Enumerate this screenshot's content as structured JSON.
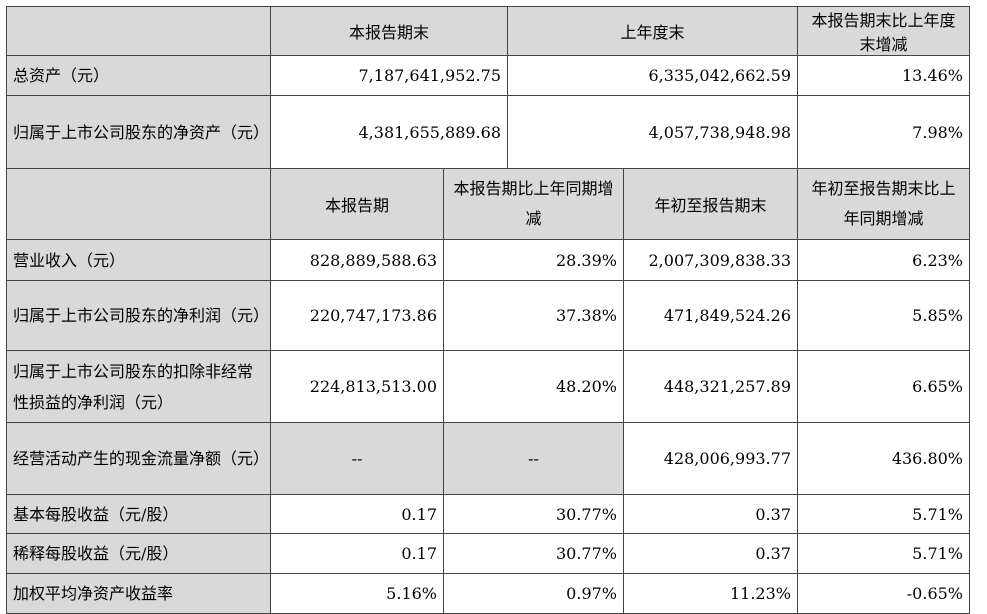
{
  "section1": {
    "headers": [
      "本报告期末",
      "上年度末",
      "本报告期末比上年度末增减"
    ],
    "rows": [
      {
        "label": "总资产（元）",
        "current": "7,187,641,952.75",
        "prior": "6,335,042,662.59",
        "change": "13.46%"
      },
      {
        "label": "归属于上市公司股东的净资产（元）",
        "current": "4,381,655,889.68",
        "prior": "4,057,738,948.98",
        "change": "7.98%"
      }
    ]
  },
  "section2": {
    "headers": [
      "本报告期",
      "本报告期比上年同期增减",
      "年初至报告期末",
      "年初至报告期末比上年同期增减"
    ],
    "rows": [
      {
        "label": "营业收入（元）",
        "period": "828,889,588.63",
        "period_change": "28.39%",
        "ytd": "2,007,309,838.33",
        "ytd_change": "6.23%"
      },
      {
        "label": "归属于上市公司股东的净利润（元）",
        "period": "220,747,173.86",
        "period_change": "37.38%",
        "ytd": "471,849,524.26",
        "ytd_change": "5.85%"
      },
      {
        "label": "归属于上市公司股东的扣除非经常性损益的净利润（元）",
        "period": "224,813,513.00",
        "period_change": "48.20%",
        "ytd": "448,321,257.89",
        "ytd_change": "6.65%"
      },
      {
        "label": "经营活动产生的现金流量净额（元）",
        "period": "--",
        "period_change": "--",
        "ytd": "428,006,993.77",
        "ytd_change": "436.80%"
      },
      {
        "label": "基本每股收益（元/股）",
        "period": "0.17",
        "period_change": "30.77%",
        "ytd": "0.37",
        "ytd_change": "5.71%"
      },
      {
        "label": "稀释每股收益（元/股）",
        "period": "0.17",
        "period_change": "30.77%",
        "ytd": "0.37",
        "ytd_change": "5.71%"
      },
      {
        "label": "加权平均净资产收益率",
        "period": "5.16%",
        "period_change": "0.97%",
        "ytd": "11.23%",
        "ytd_change": "-0.65%"
      }
    ]
  }
}
